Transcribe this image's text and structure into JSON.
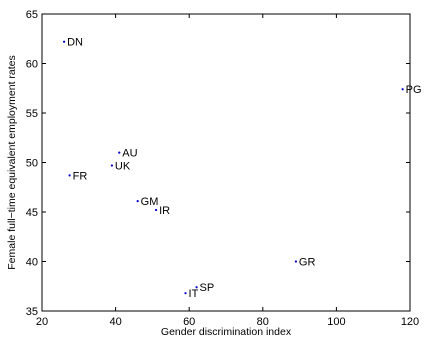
{
  "chart_data": {
    "type": "scatter",
    "title": "",
    "xlabel": "Gender discrimination index",
    "ylabel": "Female full−time equivalent employment rates",
    "xlim": [
      20,
      120
    ],
    "ylim": [
      35,
      65
    ],
    "xticks": [
      "20",
      "40",
      "60",
      "80",
      "100",
      "120"
    ],
    "yticks": [
      "35",
      "40",
      "45",
      "50",
      "55",
      "60",
      "65"
    ],
    "grid": false,
    "legend": "none",
    "marker_color": "#0000cc",
    "points": [
      {
        "label": "DN",
        "x": 26,
        "y": 62.2
      },
      {
        "label": "PG",
        "x": 118,
        "y": 57.4
      },
      {
        "label": "AU",
        "x": 41,
        "y": 51.0
      },
      {
        "label": "UK",
        "x": 39,
        "y": 49.7
      },
      {
        "label": "FR",
        "x": 27.5,
        "y": 48.7
      },
      {
        "label": "GM",
        "x": 46,
        "y": 46.1
      },
      {
        "label": "IR",
        "x": 51,
        "y": 45.2
      },
      {
        "label": "GR",
        "x": 89,
        "y": 40.0
      },
      {
        "label": "SP",
        "x": 62,
        "y": 37.4
      },
      {
        "label": "IT",
        "x": 59,
        "y": 36.8
      }
    ]
  }
}
